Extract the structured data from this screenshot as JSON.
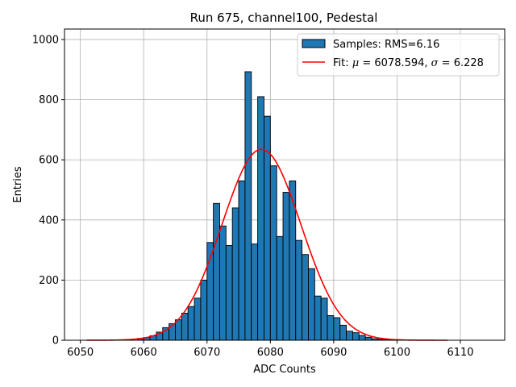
{
  "chart_data": {
    "type": "bar",
    "title": "Run 675, channel100, Pedestal",
    "xlabel": "ADC Counts",
    "ylabel": "Entries",
    "xlim": [
      6047.5,
      6117
    ],
    "ylim": [
      0,
      1035
    ],
    "grid": true,
    "legend_position": "top-right",
    "bar_color": "#1f77b4",
    "fit_color": "#ff0000",
    "x_ticks": [
      6050,
      6060,
      6070,
      6080,
      6090,
      6100,
      6110
    ],
    "y_ticks": [
      0,
      200,
      400,
      600,
      800,
      1000
    ],
    "histogram": {
      "name": "Samples: RMS=6.16",
      "bin_start": 6059,
      "bin_width": 1,
      "counts": [
        6,
        9,
        15,
        27,
        42,
        55,
        68,
        90,
        112,
        140,
        200,
        325,
        455,
        380,
        315,
        440,
        530,
        893,
        320,
        810,
        745,
        580,
        345,
        492,
        530,
        332,
        285,
        238,
        147,
        140,
        82,
        75,
        50,
        30,
        25,
        16,
        10,
        5,
        3,
        2,
        1
      ]
    },
    "fit": {
      "name_prefix": "Fit: ",
      "mu_symbol": "μ",
      "mu_text": " = 6078.594, ",
      "sigma_symbol": "σ",
      "sigma_text": " = 6.228",
      "mu": 6078.594,
      "sigma": 6.228,
      "amplitude": 635,
      "x_range": [
        6051,
        6108
      ]
    }
  }
}
